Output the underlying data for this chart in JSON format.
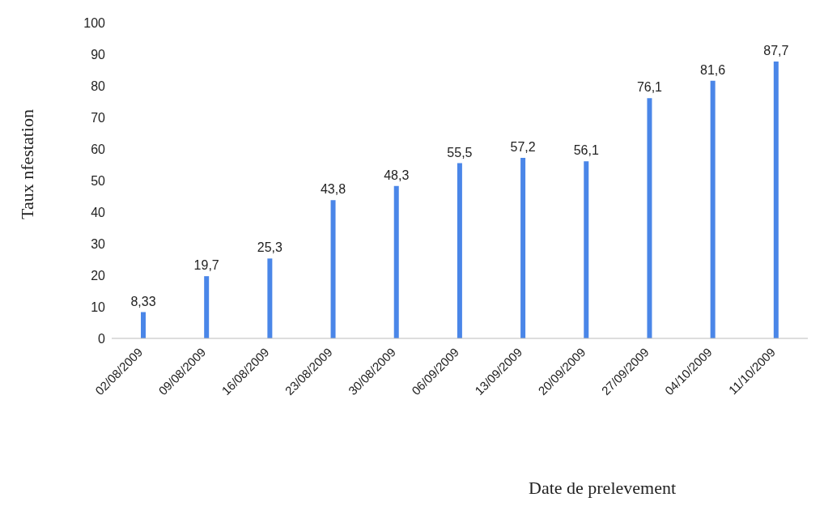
{
  "chart_data": {
    "type": "bar",
    "xlabel": "Date de prelevement",
    "ylabel": "Taux  nfestation",
    "categories": [
      "02/08/2009",
      "09/08/2009",
      "16/08/2009",
      "23/08/2009",
      "30/08/2009",
      "06/09/2009",
      "13/09/2009",
      "20/09/2009",
      "27/09/2009",
      "04/10/2009",
      "11/10/2009"
    ],
    "values": [
      8.33,
      19.7,
      25.3,
      43.8,
      48.3,
      55.5,
      57.2,
      56.1,
      76.1,
      81.6,
      87.7
    ],
    "value_labels": [
      "8,33",
      "19,7",
      "25,3",
      "43,8",
      "48,3",
      "55,5",
      "57,2",
      "56,1",
      "76,1",
      "81,6",
      "87,7"
    ],
    "color": "#4a86e8",
    "ylim": [
      0,
      100
    ],
    "yticks": [
      0,
      10,
      20,
      30,
      40,
      50,
      60,
      70,
      80,
      90,
      100
    ],
    "grid": false
  }
}
